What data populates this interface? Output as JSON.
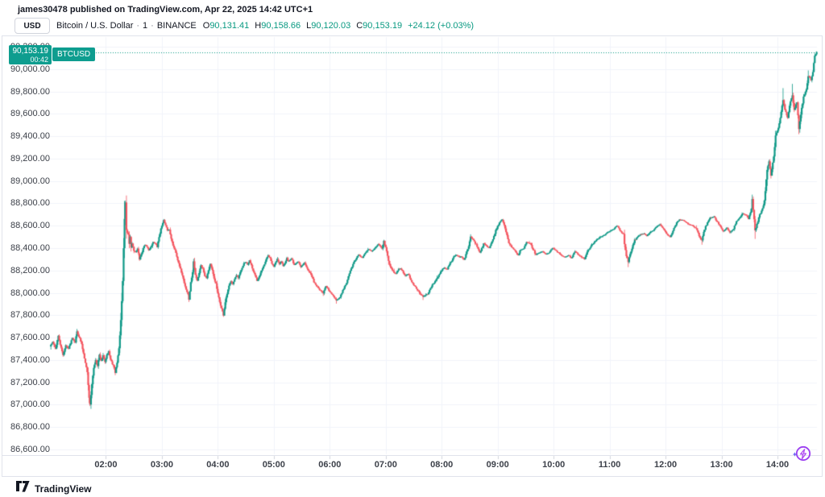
{
  "header": {
    "published_line": "james30478 published on TradingView.com, Apr 22, 2025 14:42 UTC+1"
  },
  "symbol_bar": {
    "currency_button": "USD",
    "symbol_title": "Bitcoin / U.S. Dollar",
    "separator": "·",
    "interval": "1",
    "exchange": "BINANCE",
    "ohlc": {
      "o_label": "O",
      "o": "90,131.41",
      "h_label": "H",
      "h": "90,158.66",
      "l_label": "L",
      "l": "90,120.03",
      "c_label": "C",
      "c": "90,153.19",
      "change": "+24.12 (+0.03%)"
    }
  },
  "price_label": {
    "price": "90,153.19",
    "countdown": "00:42",
    "ticker": "BTCUSD"
  },
  "footer": {
    "brand": "TradingView"
  },
  "colors": {
    "up": "#0d9886",
    "down": "#f4545e",
    "accent": "#089981",
    "grid": "#f0f3fa",
    "frame": "#e0e3eb",
    "axis_text": "#3c4049",
    "tick": "#d1d4dc"
  },
  "chart_data": {
    "type": "candlestick",
    "title": "Bitcoin / U.S. Dollar, 1 minute, BINANCE",
    "symbol": "BTCUSD",
    "interval_minutes": 1,
    "session_start": "01:00",
    "session_end": "14:42",
    "last_price": 90153.19,
    "last_candle": {
      "open": 90131.41,
      "high": 90158.66,
      "low": 90120.03,
      "close": 90153.19
    },
    "ylim": [
      86550,
      90290
    ],
    "grid_price_step": 200,
    "grid_time_step_minutes": 60,
    "y_axis_labels": [
      "90,200.00",
      "90,000.00",
      "89,800.00",
      "89,600.00",
      "89,400.00",
      "89,200.00",
      "89,000.00",
      "88,800.00",
      "88,600.00",
      "88,400.00",
      "88,200.00",
      "88,000.00",
      "87,800.00",
      "87,600.00",
      "87,400.00",
      "87,200.00",
      "87,000.00",
      "86,800.00",
      "86,600.00"
    ],
    "x_axis_labels": [
      "02:00",
      "03:00",
      "04:00",
      "05:00",
      "06:00",
      "07:00",
      "08:00",
      "09:00",
      "10:00",
      "11:00",
      "12:00",
      "13:00",
      "14:00"
    ],
    "price_path_anchors": [
      [
        0,
        87520
      ],
      [
        3,
        87560
      ],
      [
        6,
        87500
      ],
      [
        9,
        87615
      ],
      [
        12,
        87505
      ],
      [
        14,
        87445
      ],
      [
        17,
        87530
      ],
      [
        20,
        87500
      ],
      [
        24,
        87600
      ],
      [
        27,
        87560
      ],
      [
        29,
        87655
      ],
      [
        32,
        87590
      ],
      [
        34,
        87540
      ],
      [
        36,
        87460
      ],
      [
        38,
        87380
      ],
      [
        40,
        87290
      ],
      [
        41,
        87180
      ],
      [
        42,
        87060
      ],
      [
        43,
        87005
      ],
      [
        44,
        87090
      ],
      [
        45,
        87180
      ],
      [
        47,
        87330
      ],
      [
        49,
        87400
      ],
      [
        51,
        87350
      ],
      [
        53,
        87445
      ],
      [
        55,
        87390
      ],
      [
        57,
        87440
      ],
      [
        59,
        87380
      ],
      [
        61,
        87450
      ],
      [
        63,
        87480
      ],
      [
        65,
        87400
      ],
      [
        68,
        87350
      ],
      [
        70,
        87285
      ],
      [
        72,
        87380
      ],
      [
        74,
        87500
      ],
      [
        76,
        87750
      ],
      [
        78,
        88100
      ],
      [
        79,
        88400
      ],
      [
        80,
        88660
      ],
      [
        81,
        88810
      ],
      [
        82,
        88560
      ],
      [
        84,
        88520
      ],
      [
        85,
        88440
      ],
      [
        86,
        88500
      ],
      [
        87,
        88400
      ],
      [
        88,
        88440
      ],
      [
        90,
        88370
      ],
      [
        92,
        88365
      ],
      [
        94,
        88400
      ],
      [
        96,
        88300
      ],
      [
        98,
        88340
      ],
      [
        100,
        88400
      ],
      [
        102,
        88430
      ],
      [
        104,
        88415
      ],
      [
        106,
        88380
      ],
      [
        109,
        88425
      ],
      [
        111,
        88455
      ],
      [
        113,
        88440
      ],
      [
        115,
        88410
      ],
      [
        117,
        88500
      ],
      [
        119,
        88570
      ],
      [
        121,
        88630
      ],
      [
        122,
        88650
      ],
      [
        124,
        88600
      ],
      [
        126,
        88560
      ],
      [
        128,
        88565
      ],
      [
        130,
        88490
      ],
      [
        132,
        88420
      ],
      [
        134,
        88390
      ],
      [
        136,
        88330
      ],
      [
        138,
        88260
      ],
      [
        140,
        88210
      ],
      [
        142,
        88160
      ],
      [
        144,
        88090
      ],
      [
        146,
        88030
      ],
      [
        148,
        87985
      ],
      [
        149,
        87940
      ],
      [
        151,
        88090
      ],
      [
        153,
        88185
      ],
      [
        154,
        88280
      ],
      [
        156,
        88160
      ],
      [
        158,
        88110
      ],
      [
        160,
        88180
      ],
      [
        162,
        88250
      ],
      [
        164,
        88215
      ],
      [
        166,
        88155
      ],
      [
        168,
        88135
      ],
      [
        170,
        88205
      ],
      [
        172,
        88260
      ],
      [
        174,
        88200
      ],
      [
        176,
        88130
      ],
      [
        178,
        88080
      ],
      [
        180,
        87990
      ],
      [
        182,
        87920
      ],
      [
        184,
        87860
      ],
      [
        186,
        87800
      ],
      [
        188,
        87915
      ],
      [
        190,
        87990
      ],
      [
        192,
        88060
      ],
      [
        194,
        88105
      ],
      [
        196,
        88080
      ],
      [
        198,
        88120
      ],
      [
        200,
        88155
      ],
      [
        202,
        88130
      ],
      [
        204,
        88180
      ],
      [
        206,
        88225
      ],
      [
        208,
        88260
      ],
      [
        210,
        88275
      ],
      [
        212,
        88250
      ],
      [
        214,
        88290
      ],
      [
        216,
        88250
      ],
      [
        218,
        88200
      ],
      [
        220,
        88155
      ],
      [
        222,
        88105
      ],
      [
        224,
        88135
      ],
      [
        226,
        88185
      ],
      [
        228,
        88225
      ],
      [
        230,
        88255
      ],
      [
        232,
        88300
      ],
      [
        234,
        88335
      ],
      [
        236,
        88310
      ],
      [
        238,
        88260
      ],
      [
        240,
        88235
      ],
      [
        242,
        88275
      ],
      [
        244,
        88300
      ],
      [
        246,
        88260
      ],
      [
        248,
        88280
      ],
      [
        250,
        88240
      ],
      [
        252,
        88270
      ],
      [
        254,
        88310
      ],
      [
        256,
        88280
      ],
      [
        259,
        88310
      ],
      [
        262,
        88250
      ],
      [
        266,
        88280
      ],
      [
        269,
        88230
      ],
      [
        273,
        88270
      ],
      [
        276,
        88220
      ],
      [
        280,
        88160
      ],
      [
        283,
        88100
      ],
      [
        286,
        88060
      ],
      [
        290,
        88020
      ],
      [
        293,
        87995
      ],
      [
        296,
        88060
      ],
      [
        300,
        88010
      ],
      [
        304,
        87970
      ],
      [
        307,
        87930
      ],
      [
        311,
        87960
      ],
      [
        314,
        88020
      ],
      [
        318,
        88090
      ],
      [
        321,
        88170
      ],
      [
        325,
        88260
      ],
      [
        328,
        88300
      ],
      [
        331,
        88340
      ],
      [
        335,
        88310
      ],
      [
        338,
        88360
      ],
      [
        342,
        88390
      ],
      [
        345,
        88370
      ],
      [
        349,
        88410
      ],
      [
        352,
        88435
      ],
      [
        356,
        88400
      ],
      [
        358,
        88465
      ],
      [
        361,
        88370
      ],
      [
        363,
        88280
      ],
      [
        366,
        88220
      ],
      [
        369,
        88180
      ],
      [
        371,
        88170
      ],
      [
        374,
        88215
      ],
      [
        376,
        88215
      ],
      [
        379,
        88180
      ],
      [
        381,
        88155
      ],
      [
        384,
        88170
      ],
      [
        387,
        88110
      ],
      [
        389,
        88085
      ],
      [
        392,
        88050
      ],
      [
        394,
        88025
      ],
      [
        397,
        87995
      ],
      [
        400,
        87965
      ],
      [
        402,
        87975
      ],
      [
        405,
        87990
      ],
      [
        407,
        88025
      ],
      [
        410,
        88070
      ],
      [
        413,
        88105
      ],
      [
        415,
        88130
      ],
      [
        418,
        88170
      ],
      [
        420,
        88205
      ],
      [
        423,
        88225
      ],
      [
        426,
        88210
      ],
      [
        428,
        88250
      ],
      [
        431,
        88290
      ],
      [
        433,
        88325
      ],
      [
        436,
        88340
      ],
      [
        439,
        88320
      ],
      [
        441,
        88325
      ],
      [
        444,
        88295
      ],
      [
        446,
        88340
      ],
      [
        449,
        88420
      ],
      [
        451,
        88500
      ],
      [
        454,
        88475
      ],
      [
        457,
        88430
      ],
      [
        461,
        88360
      ],
      [
        465,
        88440
      ],
      [
        468,
        88420
      ],
      [
        471,
        88400
      ],
      [
        475,
        88480
      ],
      [
        478,
        88560
      ],
      [
        482,
        88630
      ],
      [
        485,
        88655
      ],
      [
        489,
        88550
      ],
      [
        492,
        88445
      ],
      [
        496,
        88400
      ],
      [
        499,
        88370
      ],
      [
        502,
        88335
      ],
      [
        504,
        88380
      ],
      [
        508,
        88395
      ],
      [
        511,
        88450
      ],
      [
        515,
        88440
      ],
      [
        518,
        88390
      ],
      [
        521,
        88340
      ],
      [
        525,
        88360
      ],
      [
        528,
        88370
      ],
      [
        532,
        88345
      ],
      [
        535,
        88360
      ],
      [
        539,
        88400
      ],
      [
        542,
        88380
      ],
      [
        545,
        88360
      ],
      [
        549,
        88330
      ],
      [
        552,
        88320
      ],
      [
        556,
        88335
      ],
      [
        559,
        88310
      ],
      [
        563,
        88370
      ],
      [
        566,
        88345
      ],
      [
        570,
        88320
      ],
      [
        573,
        88300
      ],
      [
        577,
        88380
      ],
      [
        580,
        88420
      ],
      [
        584,
        88460
      ],
      [
        587,
        88480
      ],
      [
        590,
        88500
      ],
      [
        594,
        88515
      ],
      [
        597,
        88535
      ],
      [
        601,
        88555
      ],
      [
        604,
        88570
      ],
      [
        608,
        88600
      ],
      [
        611,
        88560
      ],
      [
        615,
        88520
      ],
      [
        616,
        88430
      ],
      [
        618,
        88330
      ],
      [
        620,
        88275
      ],
      [
        622,
        88350
      ],
      [
        625,
        88420
      ],
      [
        627,
        88470
      ],
      [
        630,
        88500
      ],
      [
        633,
        88520
      ],
      [
        637,
        88530
      ],
      [
        640,
        88510
      ],
      [
        644,
        88545
      ],
      [
        647,
        88560
      ],
      [
        651,
        88595
      ],
      [
        654,
        88610
      ],
      [
        658,
        88570
      ],
      [
        661,
        88530
      ],
      [
        665,
        88500
      ],
      [
        668,
        88560
      ],
      [
        672,
        88630
      ],
      [
        675,
        88655
      ],
      [
        679,
        88650
      ],
      [
        682,
        88630
      ],
      [
        686,
        88610
      ],
      [
        689,
        88600
      ],
      [
        693,
        88575
      ],
      [
        696,
        88510
      ],
      [
        699,
        88465
      ],
      [
        701,
        88550
      ],
      [
        705,
        88630
      ],
      [
        708,
        88670
      ],
      [
        712,
        88680
      ],
      [
        715,
        88640
      ],
      [
        719,
        88590
      ],
      [
        722,
        88550
      ],
      [
        726,
        88580
      ],
      [
        729,
        88540
      ],
      [
        733,
        88570
      ],
      [
        736,
        88640
      ],
      [
        740,
        88680
      ],
      [
        743,
        88710
      ],
      [
        747,
        88690
      ],
      [
        749,
        88660
      ],
      [
        752,
        88750
      ],
      [
        753,
        88840
      ],
      [
        756,
        88560
      ],
      [
        758,
        88610
      ],
      [
        761,
        88700
      ],
      [
        764,
        88750
      ],
      [
        766,
        88820
      ],
      [
        769,
        89100
      ],
      [
        771,
        89180
      ],
      [
        773,
        89050
      ],
      [
        776,
        89220
      ],
      [
        778,
        89400
      ],
      [
        781,
        89480
      ],
      [
        783,
        89560
      ],
      [
        786,
        89720
      ],
      [
        788,
        89640
      ],
      [
        791,
        89560
      ],
      [
        793,
        89680
      ],
      [
        796,
        89760
      ],
      [
        798,
        89640
      ],
      [
        801,
        89700
      ],
      [
        803,
        89470
      ],
      [
        806,
        89650
      ],
      [
        808,
        89750
      ],
      [
        811,
        89820
      ],
      [
        813,
        89940
      ],
      [
        816,
        89900
      ],
      [
        818,
        89980
      ],
      [
        820,
        90120.03
      ],
      [
        821,
        90131.41
      ],
      [
        822,
        90153.19
      ]
    ],
    "wick_events": [
      [
        43,
        "l",
        86988
      ],
      [
        80,
        "h",
        88822
      ],
      [
        186,
        "l",
        87785
      ],
      [
        307,
        "l",
        87903
      ],
      [
        400,
        "l",
        87936
      ],
      [
        620,
        "l",
        88230
      ],
      [
        699,
        "l",
        88430
      ],
      [
        753,
        "h",
        88878
      ],
      [
        756,
        "l",
        88482
      ],
      [
        786,
        "h",
        89830
      ],
      [
        796,
        "h",
        89868
      ],
      [
        803,
        "l",
        89418
      ],
      [
        813,
        "h",
        89988
      ],
      [
        822,
        "h",
        90158.66
      ],
      [
        822,
        "l",
        90120.03
      ]
    ]
  }
}
